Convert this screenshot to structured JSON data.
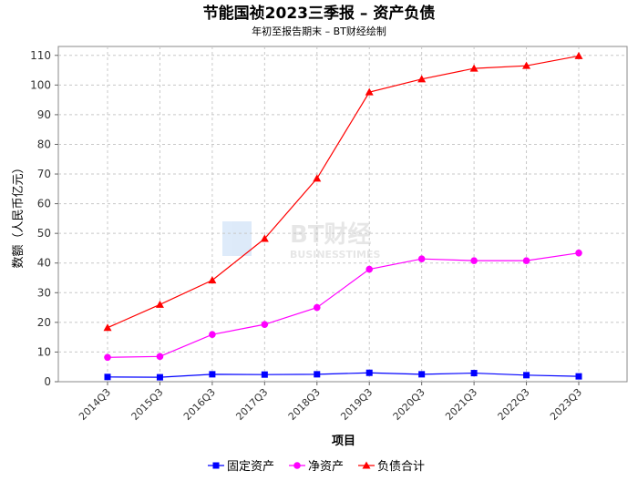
{
  "chart_data": {
    "type": "line",
    "title": "节能国祯2023三季报 – 资产负债",
    "subtitle": "年初至报告期末 – BT财经绘制",
    "xlabel": "项目",
    "ylabel": "数额（人民币亿元）",
    "ylim": [
      0,
      113
    ],
    "yticks": [
      0,
      10,
      20,
      30,
      40,
      50,
      60,
      70,
      80,
      90,
      100,
      110
    ],
    "grid": true,
    "legend_position": "bottom",
    "categories": [
      "2014Q3",
      "2015Q3",
      "2016Q3",
      "2017Q3",
      "2018Q3",
      "2019Q3",
      "2020Q3",
      "2021Q3",
      "2022Q3",
      "2023Q3"
    ],
    "series": [
      {
        "name": "固定资产",
        "color": "#0000ff",
        "marker": "square",
        "values": [
          1.6,
          1.5,
          2.5,
          2.4,
          2.5,
          3.0,
          2.5,
          2.9,
          2.2,
          1.8
        ]
      },
      {
        "name": "净资产",
        "color": "#ff00ff",
        "marker": "circle",
        "values": [
          8.2,
          8.5,
          15.9,
          19.3,
          25.0,
          37.9,
          41.4,
          40.8,
          40.8,
          43.4
        ]
      },
      {
        "name": "负债合计",
        "color": "#ff0000",
        "marker": "triangle",
        "values": [
          18.2,
          26.0,
          34.2,
          48.2,
          68.5,
          97.6,
          102.0,
          105.6,
          106.5,
          109.8
        ]
      }
    ],
    "watermark": {
      "logo_text": "BT财经",
      "logo_sub": "BUSINESSTIMES"
    }
  }
}
